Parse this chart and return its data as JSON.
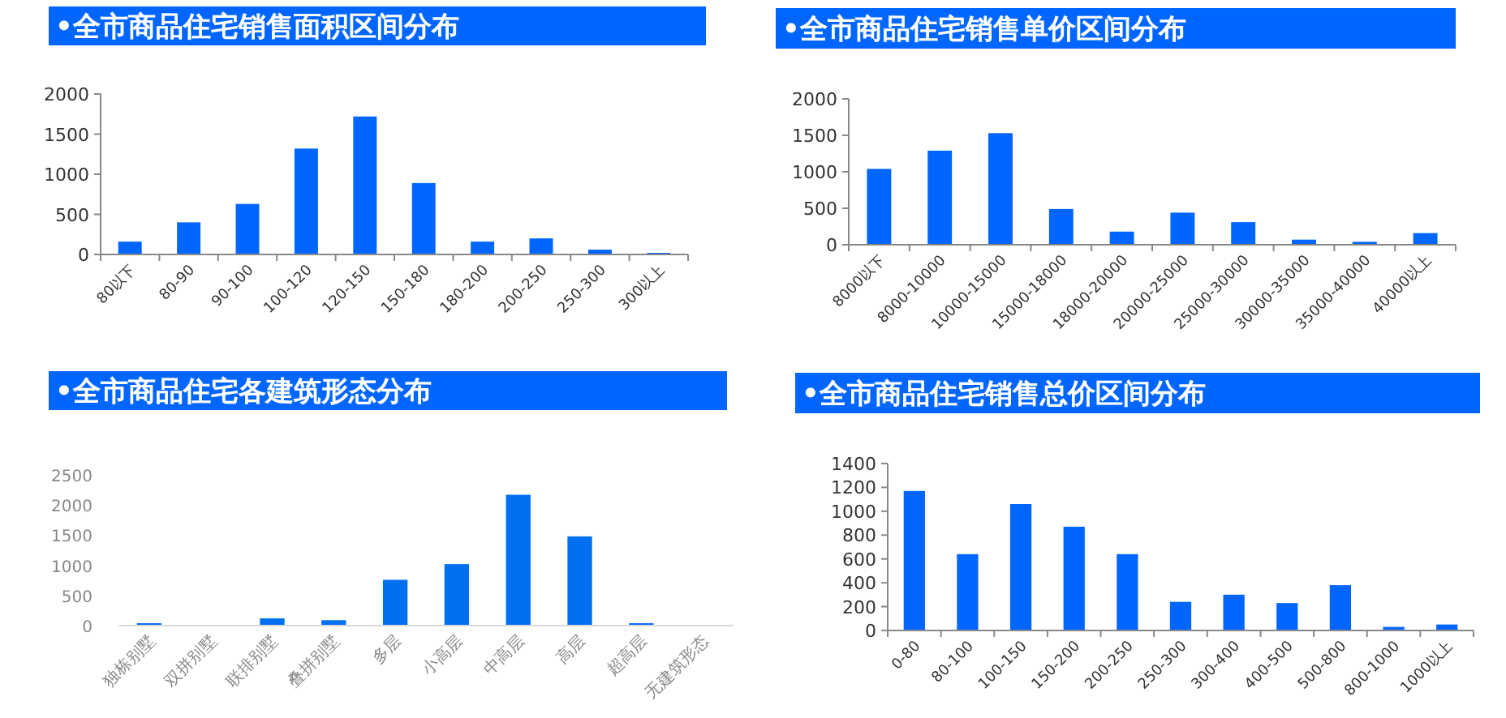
{
  "chart_data": [
    {
      "type": "bar",
      "title": "•全市商品住宅销售面积区间分布",
      "categories": [
        "80以下",
        "80-90",
        "90-100",
        "100-120",
        "120-150",
        "150-180",
        "180-200",
        "200-250",
        "250-300",
        "300以上"
      ],
      "values": [
        160,
        400,
        630,
        1320,
        1720,
        890,
        160,
        200,
        60,
        20
      ],
      "color": "#0066ff",
      "ylim": [
        0,
        2000
      ],
      "yticks": [
        0,
        500,
        1000,
        1500,
        2000
      ]
    },
    {
      "type": "bar",
      "title": "•全市商品住宅销售单价区间分布",
      "categories": [
        "8000以下",
        "8000-10000",
        "10000-15000",
        "15000-18000",
        "18000-20000",
        "20000-25000",
        "25000-30000",
        "30000-35000",
        "35000-40000",
        "40000以上"
      ],
      "values": [
        1040,
        1290,
        1530,
        490,
        180,
        440,
        310,
        70,
        40,
        160
      ],
      "color": "#0066ff",
      "ylim": [
        0,
        2000
      ],
      "yticks": [
        0,
        500,
        1000,
        1500,
        2000
      ]
    },
    {
      "type": "bar",
      "title": "•全市商品住宅各建筑形态分布",
      "categories": [
        "独栋别墅",
        "双拼别墅",
        "联排别墅",
        "叠拼别墅",
        "多层",
        "小高层",
        "中高层",
        "高层",
        "超高层",
        "无建筑形态"
      ],
      "values": [
        40,
        0,
        120,
        90,
        760,
        1020,
        2170,
        1480,
        40,
        0
      ],
      "color": "#0070f0",
      "ylim": [
        0,
        2500
      ],
      "yticks": [
        0,
        500,
        1000,
        1500,
        2000,
        2500
      ]
    },
    {
      "type": "bar",
      "title": "•全市商品住宅销售总价区间分布",
      "categories": [
        "0-80",
        "80-100",
        "100-150",
        "150-200",
        "200-250",
        "250-300",
        "300-400",
        "400-500",
        "500-800",
        "800-1000",
        "1000以上"
      ],
      "values": [
        1170,
        640,
        1060,
        870,
        640,
        240,
        300,
        230,
        380,
        30,
        50
      ],
      "color": "#0066ff",
      "ylim": [
        0,
        1400
      ],
      "yticks": [
        0,
        200,
        400,
        600,
        800,
        1000,
        1200,
        1400
      ]
    }
  ]
}
